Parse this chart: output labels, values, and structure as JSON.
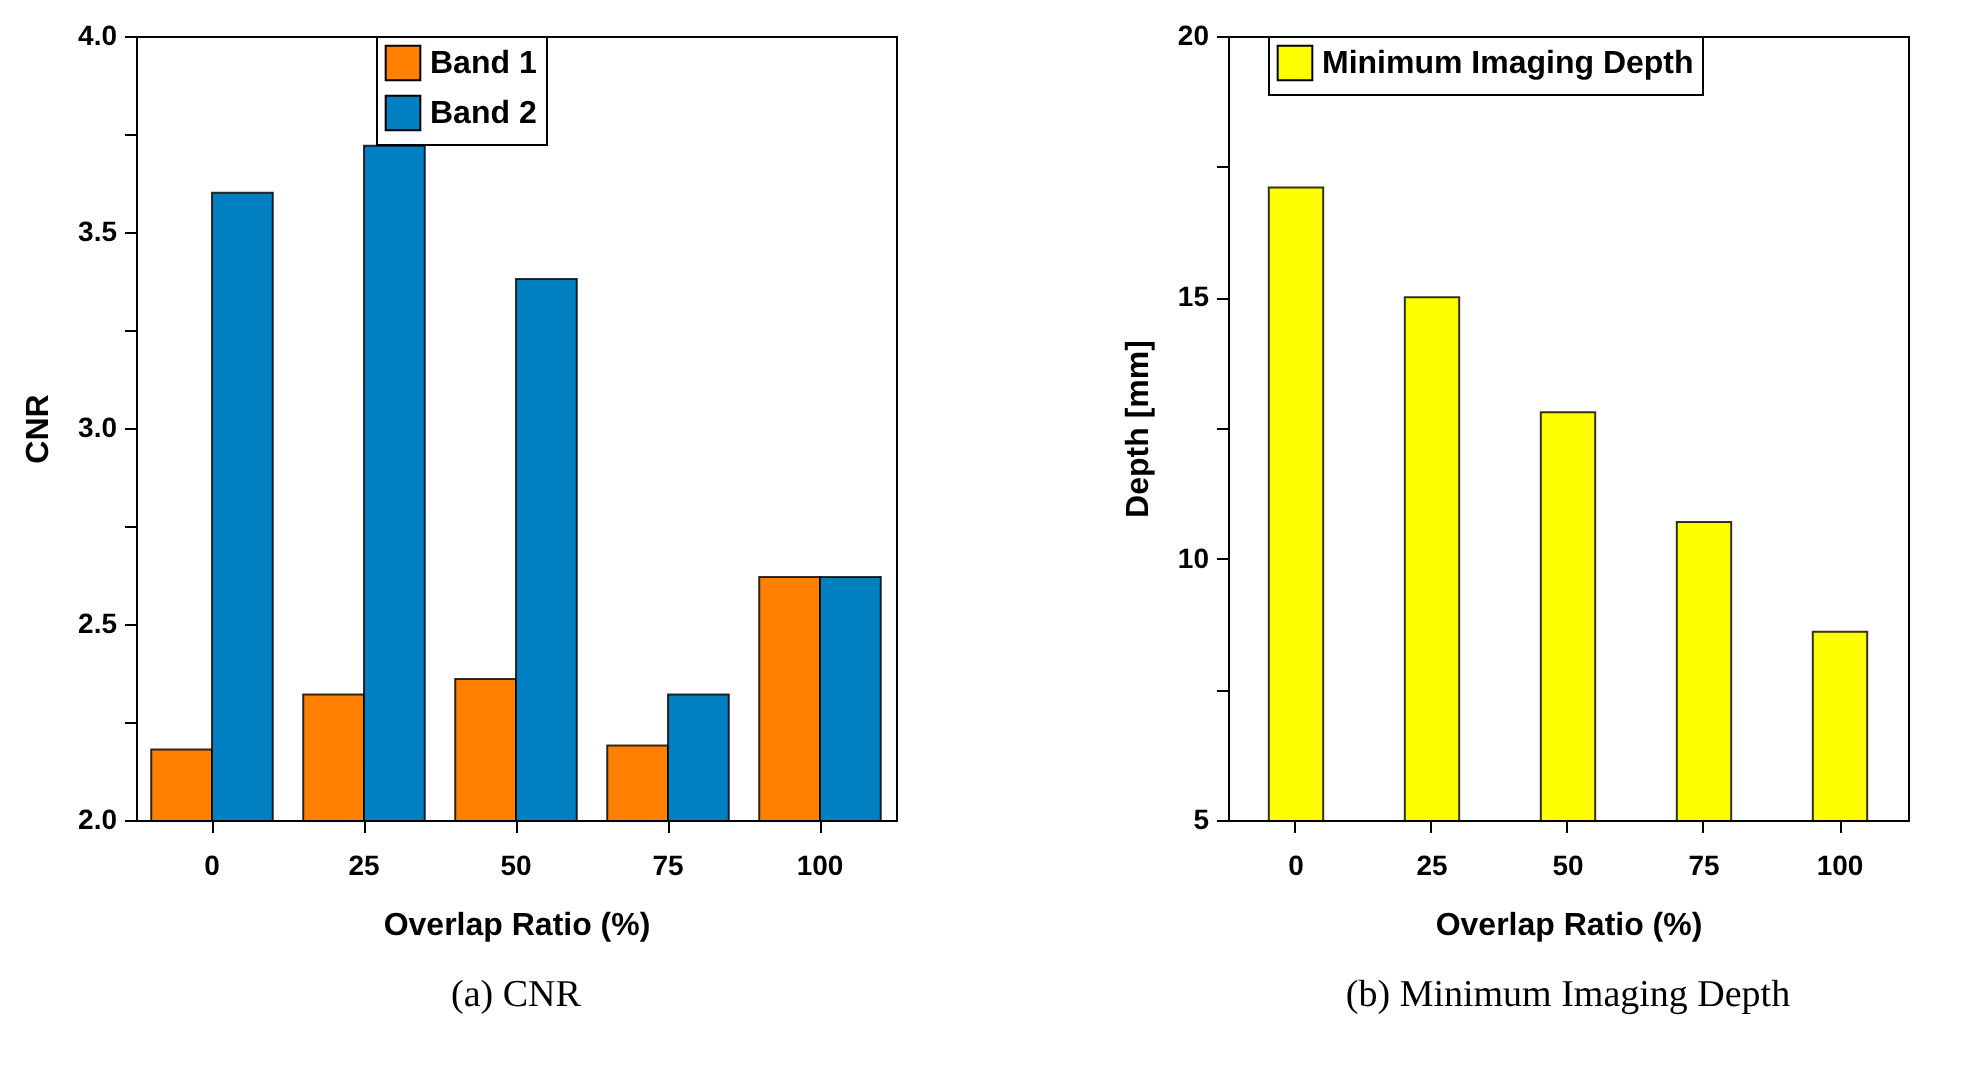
{
  "chart_data": [
    {
      "type": "bar",
      "categories": [
        "0",
        "25",
        "50",
        "75",
        "100"
      ],
      "xlabel": "Overlap Ratio (%)",
      "ylabel": "CNR",
      "ylim": [
        2.0,
        4.0
      ],
      "yticks": [
        {
          "value": 2.0,
          "label": "2.0"
        },
        {
          "value": 2.25,
          "label": null
        },
        {
          "value": 2.5,
          "label": "2.5"
        },
        {
          "value": 2.75,
          "label": null
        },
        {
          "value": 3.0,
          "label": "3.0"
        },
        {
          "value": 3.25,
          "label": null
        },
        {
          "value": 3.5,
          "label": "3.5"
        },
        {
          "value": 3.75,
          "label": null
        },
        {
          "value": 4.0,
          "label": "4.0"
        }
      ],
      "series": [
        {
          "name": "Band 1",
          "color": "#ff7f00",
          "values": [
            2.18,
            2.32,
            2.36,
            2.19,
            2.62
          ]
        },
        {
          "name": "Band 2",
          "color": "#0080c0",
          "values": [
            3.6,
            3.72,
            3.38,
            2.32,
            2.62
          ]
        }
      ],
      "legend": "top",
      "grid": false,
      "annotations": [
        "(a) CNR"
      ]
    },
    {
      "type": "bar",
      "categories": [
        "0",
        "25",
        "50",
        "75",
        "100"
      ],
      "xlabel": "Overlap Ratio (%)",
      "ylabel": "Depth [mm]",
      "ylim": [
        5,
        20
      ],
      "yticks": [
        5,
        {
          "value": 7.5,
          "label": null
        },
        10,
        {
          "value": 12.5,
          "label": null
        },
        15,
        {
          "value": 17.5,
          "label": null
        },
        20
      ],
      "series": [
        {
          "name": "Minimum Imaging Depth",
          "color": "#ffff00",
          "values": [
            17.1,
            15.0,
            12.8,
            10.7,
            8.6
          ]
        }
      ],
      "legend": "top",
      "grid": false,
      "annotations": [
        "(b) Minimum Imaging Depth"
      ]
    }
  ]
}
